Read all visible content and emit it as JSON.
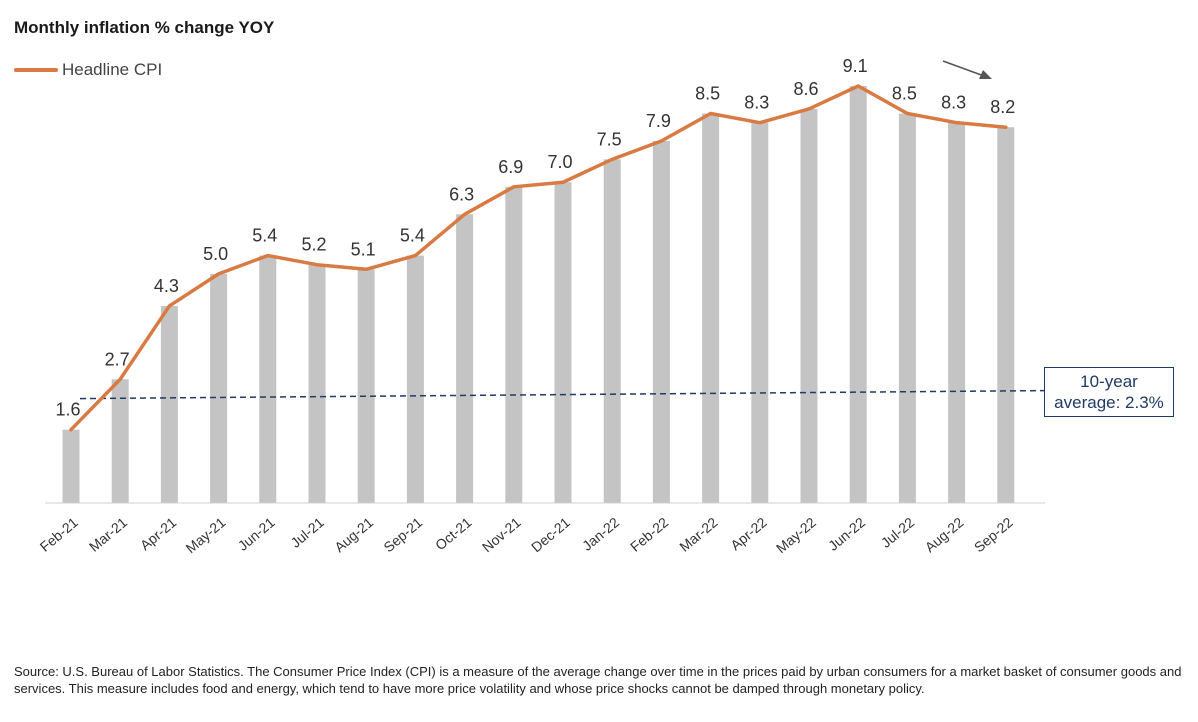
{
  "title": "Monthly inflation % change YOY",
  "legend": {
    "label": "Headline CPI",
    "color": "#d97a42"
  },
  "average_label": "10-year average: 2.3%",
  "source_note": "Source: U.S. Bureau of Labor Statistics. The Consumer Price Index (CPI) is a measure of the average change over time in the prices paid by urban consumers for a market basket of consumer goods and services. This measure includes food and energy, which tend to have more price volatility and whose price shocks cannot be damped through monetary policy.",
  "chart_data": {
    "type": "bar",
    "categories": [
      "Feb-21",
      "Mar-21",
      "Apr-21",
      "May-21",
      "Jun-21",
      "Jul-21",
      "Aug-21",
      "Sep-21",
      "Oct-21",
      "Nov-21",
      "Dec-21",
      "Jan-22",
      "Feb-22",
      "Mar-22",
      "Apr-22",
      "May-22",
      "Jun-22",
      "Jul-22",
      "Aug-22",
      "Sep-22"
    ],
    "series": [
      {
        "name": "Headline CPI",
        "values": [
          1.6,
          2.7,
          4.3,
          5.0,
          5.4,
          5.2,
          5.1,
          5.4,
          6.3,
          6.9,
          7.0,
          7.5,
          7.9,
          8.5,
          8.3,
          8.6,
          9.1,
          8.5,
          8.3,
          8.2
        ],
        "render": [
          "bar",
          "line"
        ]
      }
    ],
    "data_labels": [
      "1.6",
      "2.7",
      "4.3",
      "5.0",
      "5.4",
      "5.2",
      "5.1",
      "5.4",
      "6.3",
      "6.9",
      "7.0",
      "7.5",
      "7.9",
      "8.5",
      "8.3",
      "8.6",
      "9.1",
      "8.5",
      "8.3",
      "8.2"
    ],
    "reference_line": {
      "value": 2.3,
      "style": "dashed"
    },
    "ylim": [
      0,
      9.1
    ],
    "grid": false,
    "legend_position": "top-left",
    "colors": {
      "bar": "#c4c4c4",
      "line": "#d97a42",
      "reference": "#1f3b66",
      "arrow": "#555555"
    }
  }
}
